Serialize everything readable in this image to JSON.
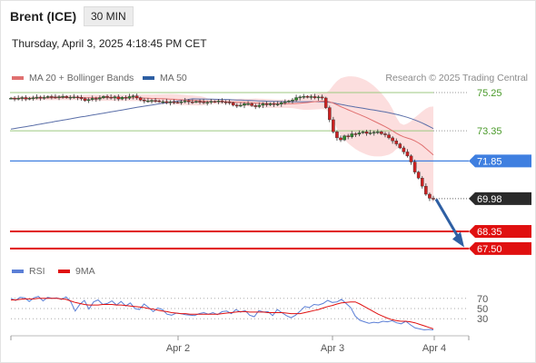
{
  "header": {
    "instrument": "Brent (ICE)",
    "interval": "30 MIN",
    "timestamp": "Thursday, April 3, 2025 4:18:45 PM CET"
  },
  "legend": {
    "ma20_label": "MA 20 + Bollinger Bands",
    "ma50_label": "MA 50",
    "research": "Research © 2025 Trading Central",
    "rsi_label": "RSI",
    "rsi_ma_label": "9MA"
  },
  "colors": {
    "bull": "#2d8a2d",
    "bear": "#cc2222",
    "ma20": "#e07070",
    "ma50": "#5a6ea8",
    "bands": "#fbd3d3",
    "resistance": "#9cc980",
    "pivot": "#3f7fe0",
    "support": "#e01010",
    "arrow": "#2e5fa3",
    "rsi": "#5b7fd6",
    "rsi_ma": "#e01010"
  },
  "chart_data": [
    {
      "type": "candlestick",
      "x_ticks": [
        "Apr 2",
        "Apr 3",
        "Apr 4"
      ],
      "ylim": [
        67.0,
        75.7
      ],
      "levels": [
        {
          "value": "75.25",
          "kind": "resistance"
        },
        {
          "value": "73.35",
          "kind": "resistance"
        },
        {
          "value": "71.85",
          "kind": "pivot"
        },
        {
          "value": "69.98",
          "kind": "last"
        },
        {
          "value": "68.35",
          "kind": "support"
        },
        {
          "value": "67.50",
          "kind": "support"
        }
      ],
      "target_arrow": {
        "from": 69.95,
        "to": 67.7
      },
      "close_series": [
        74.97,
        74.94,
        74.97,
        75.0,
        74.93,
        74.97,
        74.99,
        75.02,
        74.99,
        75.01,
        75.05,
        75.03,
        75.02,
        75.04,
        75.06,
        75.0,
        75.02,
        75.03,
        75.01,
        74.95,
        74.85,
        74.9,
        74.96,
        74.93,
        74.99,
        75.06,
        75.02,
        74.98,
        75.04,
        74.93,
        75.01,
        74.97,
        75.05,
        75.08,
        74.99,
        74.88,
        74.83,
        74.84,
        74.86,
        74.84,
        74.8,
        74.8,
        74.75,
        74.79,
        74.77,
        74.76,
        74.79,
        74.84,
        74.79,
        74.78,
        74.81,
        74.79,
        74.75,
        74.77,
        74.81,
        74.79,
        74.83,
        74.79,
        74.78,
        74.74,
        74.62,
        74.6,
        74.62,
        74.7,
        74.7,
        74.6,
        74.55,
        74.62,
        74.69,
        74.64,
        74.7,
        74.65,
        74.68,
        74.75,
        74.79,
        74.83,
        74.88,
        75.0,
        75.03,
        75.06,
        75.02,
        75.05,
        74.99,
        75.03,
        74.98,
        74.5,
        73.9,
        73.3,
        73.0,
        72.9,
        73.1,
        73.05,
        73.2,
        73.18,
        73.25,
        73.3,
        73.22,
        73.25,
        73.28,
        73.3,
        73.2,
        73.15,
        73.0,
        72.85,
        72.7,
        72.5,
        72.3,
        72.1,
        71.8,
        71.3,
        71.0,
        70.6,
        70.2,
        70.0,
        69.98
      ]
    },
    {
      "type": "line",
      "title": "RSI",
      "ylim": [
        0,
        100
      ],
      "y_ticks": [
        70,
        50,
        30
      ],
      "x_ticks": [
        "Apr 2",
        "Apr 3",
        "Apr 4"
      ],
      "series": [
        {
          "name": "RSI",
          "values": [
            70,
            66,
            72,
            71,
            64,
            71,
            74,
            65,
            72,
            70,
            71,
            68,
            73,
            64,
            45,
            58,
            66,
            49,
            63,
            67,
            58,
            60,
            65,
            57,
            64,
            55,
            61,
            50,
            48,
            59,
            52,
            44,
            51,
            48,
            39,
            37,
            41,
            40,
            38,
            37,
            36,
            40,
            42,
            39,
            42,
            38,
            44,
            45,
            40,
            48,
            43,
            46,
            37,
            34,
            46,
            43,
            44,
            36,
            48,
            42,
            36,
            32,
            37,
            45,
            54,
            52,
            58,
            57,
            60,
            66,
            62,
            63,
            68,
            60,
            52,
            35,
            27,
            24,
            21,
            23,
            22,
            25,
            24,
            26,
            22,
            20,
            25,
            18,
            12,
            10,
            8,
            9,
            8
          ]
        },
        {
          "name": "9MA",
          "values": [
            67,
            67,
            68,
            69,
            69,
            69,
            70,
            70,
            70,
            70,
            70,
            69,
            68,
            65,
            62,
            60,
            58,
            57,
            57,
            57,
            58,
            58,
            58,
            57,
            57,
            56,
            55,
            54,
            53,
            52,
            50,
            49,
            47,
            45,
            44,
            42,
            41,
            40,
            40,
            39,
            39,
            39,
            39,
            39,
            39,
            39,
            40,
            41,
            42,
            43,
            44,
            44,
            43,
            43,
            43,
            43,
            42,
            42,
            42,
            42,
            41,
            40,
            40,
            40,
            42,
            44,
            46,
            48,
            51,
            54,
            56,
            59,
            61,
            62,
            63,
            63,
            59,
            54,
            49,
            44,
            39,
            35,
            31,
            28,
            26,
            25,
            25,
            24,
            22,
            19,
            16,
            13,
            10
          ]
        }
      ]
    }
  ]
}
